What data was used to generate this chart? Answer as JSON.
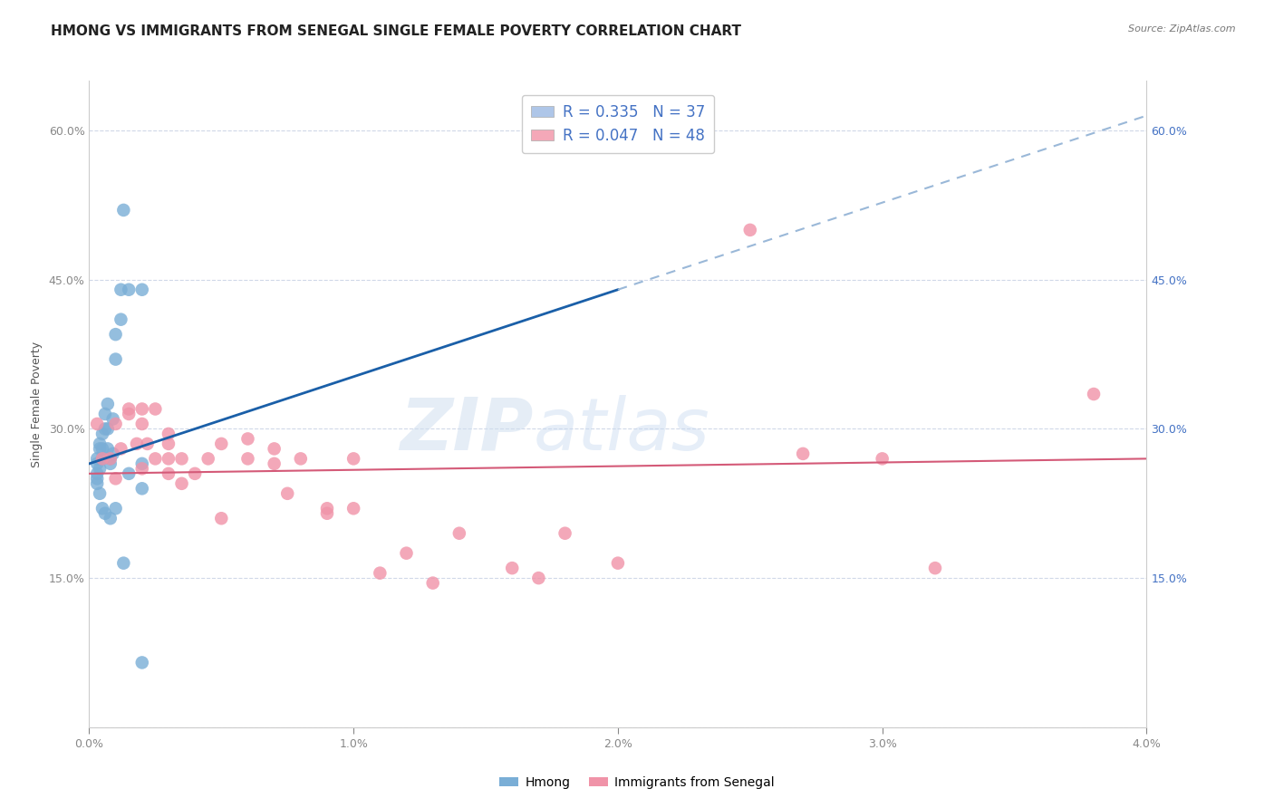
{
  "title": "HMONG VS IMMIGRANTS FROM SENEGAL SINGLE FEMALE POVERTY CORRELATION CHART",
  "source": "Source: ZipAtlas.com",
  "ylabel": "Single Female Poverty",
  "xlim": [
    0.0,
    0.04
  ],
  "ylim": [
    0.0,
    0.65
  ],
  "xticks": [
    0.0,
    0.01,
    0.02,
    0.03,
    0.04
  ],
  "xtick_labels": [
    "0.0%",
    "1.0%",
    "2.0%",
    "3.0%",
    "4.0%"
  ],
  "ytick_vals": [
    0.0,
    0.15,
    0.3,
    0.45,
    0.6
  ],
  "ytick_labels": [
    "",
    "15.0%",
    "30.0%",
    "45.0%",
    "60.0%"
  ],
  "legend_entries": [
    {
      "label": "R = 0.335   N = 37",
      "color": "#aec6e8"
    },
    {
      "label": "R = 0.047   N = 48",
      "color": "#f4a8b8"
    }
  ],
  "bottom_legend": [
    "Hmong",
    "Immigrants from Senegal"
  ],
  "hmong_color": "#7aaed6",
  "senegal_color": "#f093a8",
  "hmong_line_color": "#1a5fa8",
  "senegal_line_color": "#d45a78",
  "dashed_line_color": "#9ab8d8",
  "watermark_zip": "ZIP",
  "watermark_atlas": "atlas",
  "hmong_x": [
    0.0003,
    0.0003,
    0.0003,
    0.0003,
    0.0003,
    0.0004,
    0.0004,
    0.0004,
    0.0004,
    0.0005,
    0.0005,
    0.0005,
    0.0005,
    0.0006,
    0.0006,
    0.0006,
    0.0007,
    0.0007,
    0.0007,
    0.0008,
    0.0008,
    0.0008,
    0.0009,
    0.0009,
    0.001,
    0.001,
    0.001,
    0.0012,
    0.0012,
    0.0013,
    0.0013,
    0.0015,
    0.0015,
    0.002,
    0.002,
    0.002,
    0.002
  ],
  "hmong_y": [
    0.27,
    0.265,
    0.255,
    0.25,
    0.245,
    0.285,
    0.28,
    0.26,
    0.235,
    0.295,
    0.28,
    0.27,
    0.22,
    0.315,
    0.3,
    0.215,
    0.325,
    0.3,
    0.28,
    0.27,
    0.265,
    0.21,
    0.31,
    0.275,
    0.395,
    0.37,
    0.22,
    0.44,
    0.41,
    0.52,
    0.165,
    0.44,
    0.255,
    0.44,
    0.265,
    0.24,
    0.065
  ],
  "senegal_x": [
    0.0003,
    0.0005,
    0.0008,
    0.001,
    0.001,
    0.0012,
    0.0015,
    0.0015,
    0.0018,
    0.002,
    0.002,
    0.002,
    0.0022,
    0.0025,
    0.0025,
    0.003,
    0.003,
    0.003,
    0.003,
    0.0035,
    0.0035,
    0.004,
    0.0045,
    0.005,
    0.005,
    0.006,
    0.006,
    0.007,
    0.007,
    0.0075,
    0.008,
    0.009,
    0.009,
    0.01,
    0.01,
    0.011,
    0.012,
    0.013,
    0.014,
    0.016,
    0.017,
    0.018,
    0.02,
    0.025,
    0.027,
    0.03,
    0.032,
    0.038
  ],
  "senegal_y": [
    0.305,
    0.27,
    0.27,
    0.305,
    0.25,
    0.28,
    0.32,
    0.315,
    0.285,
    0.32,
    0.305,
    0.26,
    0.285,
    0.32,
    0.27,
    0.295,
    0.285,
    0.27,
    0.255,
    0.27,
    0.245,
    0.255,
    0.27,
    0.285,
    0.21,
    0.29,
    0.27,
    0.28,
    0.265,
    0.235,
    0.27,
    0.22,
    0.215,
    0.27,
    0.22,
    0.155,
    0.175,
    0.145,
    0.195,
    0.16,
    0.15,
    0.195,
    0.165,
    0.5,
    0.275,
    0.27,
    0.16,
    0.335
  ],
  "background_color": "#ffffff",
  "grid_color": "#d0d8e8",
  "title_fontsize": 11,
  "axis_fontsize": 9,
  "tick_fontsize": 9
}
